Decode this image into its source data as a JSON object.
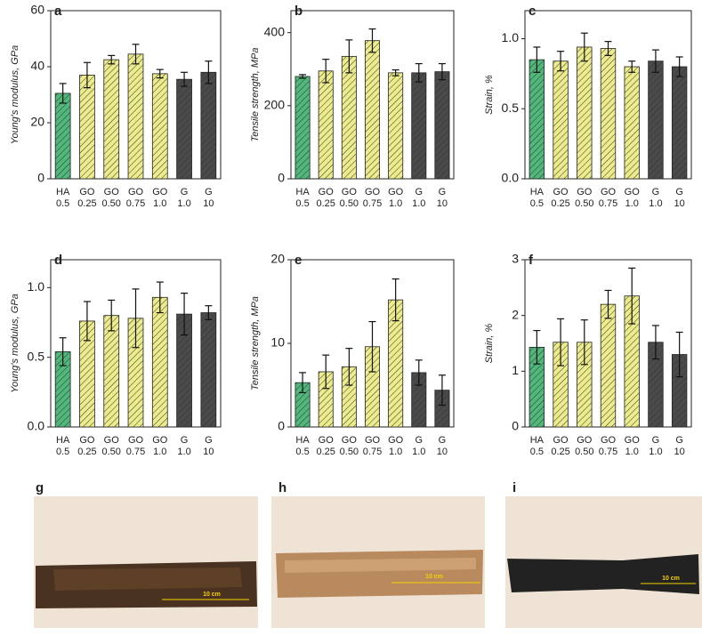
{
  "chart_data": [
    {
      "type": "bar",
      "label": "a",
      "ylabel": "Young's modulus, GPa",
      "categories": [
        [
          "HA",
          "0.5"
        ],
        [
          "GO",
          "0.25"
        ],
        [
          "GO",
          "0.50"
        ],
        [
          "GO",
          "0.75"
        ],
        [
          "GO",
          "1.0"
        ],
        [
          "G",
          "1.0"
        ],
        [
          "G",
          "10"
        ]
      ],
      "values": [
        30.5,
        37,
        42.5,
        44.5,
        37.5,
        35.5,
        38
      ],
      "errors": [
        3.5,
        4.5,
        1.5,
        3.5,
        1.5,
        2.5,
        4
      ],
      "colors": [
        "#4fb87a",
        "#ecec8c",
        "#ecec8c",
        "#ecec8c",
        "#ecec8c",
        "#4a4a4a",
        "#4a4a4a"
      ],
      "ylim": [
        0,
        60
      ],
      "yticks": [
        0,
        20,
        40,
        60
      ]
    },
    {
      "type": "bar",
      "label": "b",
      "ylabel": "Tensile strength, MPa",
      "categories": [
        [
          "HA",
          "0.5"
        ],
        [
          "GO",
          "0.25"
        ],
        [
          "GO",
          "0.50"
        ],
        [
          "GO",
          "0.75"
        ],
        [
          "GO",
          "1.0"
        ],
        [
          "G",
          "1.0"
        ],
        [
          "G",
          "10"
        ]
      ],
      "values": [
        280,
        295,
        335,
        378,
        290,
        290,
        293
      ],
      "errors": [
        5,
        32,
        45,
        32,
        8,
        25,
        22
      ],
      "colors": [
        "#4fb87a",
        "#ecec8c",
        "#ecec8c",
        "#ecec8c",
        "#ecec8c",
        "#4a4a4a",
        "#4a4a4a"
      ],
      "ylim": [
        0,
        460
      ],
      "yticks": [
        0,
        200,
        400
      ]
    },
    {
      "type": "bar",
      "label": "c",
      "ylabel": "Strain, %",
      "categories": [
        [
          "HA",
          "0.5"
        ],
        [
          "GO",
          "0.25"
        ],
        [
          "GO",
          "0.50"
        ],
        [
          "GO",
          "0.75"
        ],
        [
          "GO",
          "1.0"
        ],
        [
          "G",
          "1.0"
        ],
        [
          "G",
          "10"
        ]
      ],
      "values": [
        0.85,
        0.84,
        0.94,
        0.93,
        0.8,
        0.84,
        0.8
      ],
      "errors": [
        0.09,
        0.07,
        0.1,
        0.05,
        0.04,
        0.08,
        0.07
      ],
      "colors": [
        "#4fb87a",
        "#ecec8c",
        "#ecec8c",
        "#ecec8c",
        "#ecec8c",
        "#4a4a4a",
        "#4a4a4a"
      ],
      "ylim": [
        0,
        1.2
      ],
      "yticks": [
        {
          "value": 0,
          "label": "0.0"
        },
        0.5,
        {
          "value": 1,
          "label": "1.0"
        }
      ]
    },
    {
      "type": "bar",
      "label": "d",
      "ylabel": "Young's modulus, GPa",
      "categories": [
        [
          "HA",
          "0.5"
        ],
        [
          "GO",
          "0.25"
        ],
        [
          "GO",
          "0.50"
        ],
        [
          "GO",
          "0.75"
        ],
        [
          "GO",
          "1.0"
        ],
        [
          "G",
          "1.0"
        ],
        [
          "G",
          "10"
        ]
      ],
      "values": [
        0.54,
        0.76,
        0.8,
        0.78,
        0.93,
        0.81,
        0.82
      ],
      "errors": [
        0.1,
        0.14,
        0.11,
        0.21,
        0.11,
        0.15,
        0.05
      ],
      "colors": [
        "#4fb87a",
        "#ecec8c",
        "#ecec8c",
        "#ecec8c",
        "#ecec8c",
        "#4a4a4a",
        "#4a4a4a"
      ],
      "ylim": [
        0,
        1.2
      ],
      "yticks": [
        {
          "value": 0,
          "label": "0.0"
        },
        0.5,
        {
          "value": 1,
          "label": "1.0"
        }
      ]
    },
    {
      "type": "bar",
      "label": "e",
      "ylabel": "Tensile strength, MPa",
      "categories": [
        [
          "HA",
          "0.5"
        ],
        [
          "GO",
          "0.25"
        ],
        [
          "GO",
          "0.50"
        ],
        [
          "GO",
          "0.75"
        ],
        [
          "GO",
          "1.0"
        ],
        [
          "G",
          "1.0"
        ],
        [
          "G",
          "10"
        ]
      ],
      "values": [
        5.3,
        6.6,
        7.2,
        9.6,
        15.2,
        6.5,
        4.4
      ],
      "errors": [
        1.2,
        2,
        2.2,
        3,
        2.5,
        1.5,
        1.8
      ],
      "colors": [
        "#4fb87a",
        "#ecec8c",
        "#ecec8c",
        "#ecec8c",
        "#ecec8c",
        "#4a4a4a",
        "#4a4a4a"
      ],
      "ylim": [
        0,
        20
      ],
      "yticks": [
        0,
        10,
        20
      ]
    },
    {
      "type": "bar",
      "label": "f",
      "ylabel": "Strain, %",
      "categories": [
        [
          "HA",
          "0.5"
        ],
        [
          "GO",
          "0.25"
        ],
        [
          "GO",
          "0.50"
        ],
        [
          "GO",
          "0.75"
        ],
        [
          "GO",
          "1.0"
        ],
        [
          "G",
          "1.0"
        ],
        [
          "G",
          "10"
        ]
      ],
      "values": [
        1.43,
        1.52,
        1.52,
        2.2,
        2.35,
        1.52,
        1.3
      ],
      "errors": [
        0.3,
        0.42,
        0.4,
        0.25,
        0.5,
        0.3,
        0.4
      ],
      "colors": [
        "#4fb87a",
        "#ecec8c",
        "#ecec8c",
        "#ecec8c",
        "#ecec8c",
        "#4a4a4a",
        "#4a4a4a"
      ],
      "ylim": [
        0,
        3
      ],
      "yticks": [
        0,
        1,
        2,
        3
      ]
    }
  ],
  "photos": [
    {
      "label": "g",
      "scale": "10 cm"
    },
    {
      "label": "h",
      "scale": "10 cm"
    },
    {
      "label": "i",
      "scale": "10 cm"
    }
  ]
}
